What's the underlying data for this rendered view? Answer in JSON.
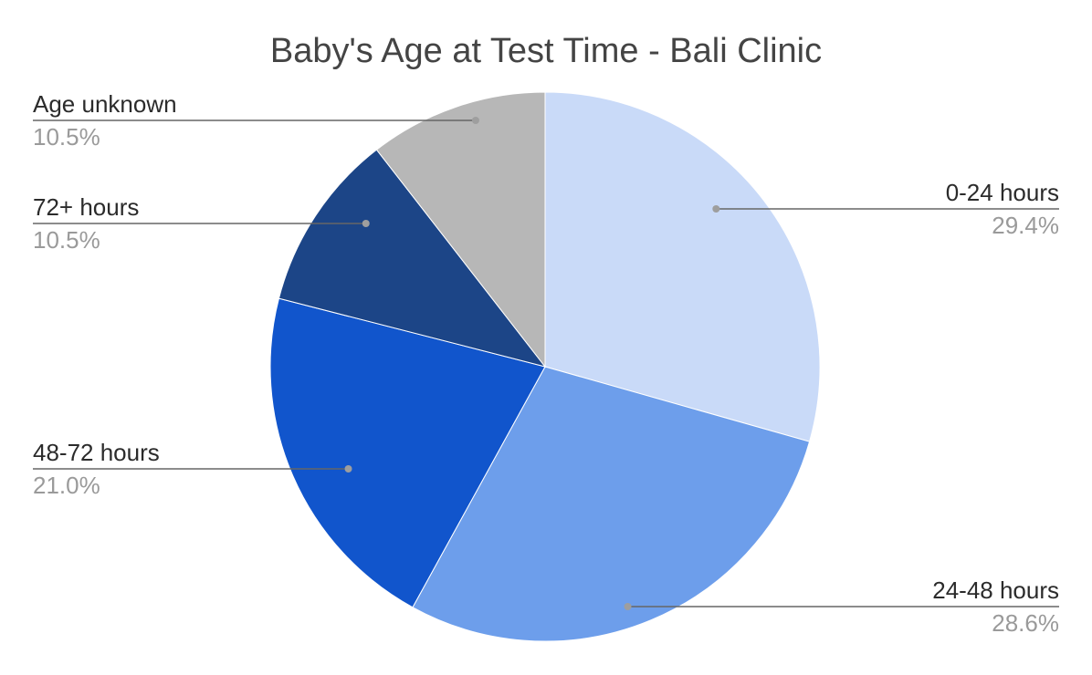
{
  "chart_data": {
    "type": "pie",
    "title": "Baby's Age at Test Time - Bali Clinic",
    "start_angle_deg": 0,
    "direction": "clockwise",
    "slices": [
      {
        "label": "0-24 hours",
        "value": 29.4,
        "value_label": "29.4%",
        "color": "#c9daf8"
      },
      {
        "label": "24-48 hours",
        "value": 28.6,
        "value_label": "28.6%",
        "color": "#6d9eeb"
      },
      {
        "label": "48-72 hours",
        "value": 21.0,
        "value_label": "21.0%",
        "color": "#1155cc"
      },
      {
        "label": "72+ hours",
        "value": 10.5,
        "value_label": "10.5%",
        "color": "#1c4587"
      },
      {
        "label": "Age unknown",
        "value": 10.5,
        "value_label": "10.5%",
        "color": "#b7b7b7"
      }
    ],
    "legend": "callout-labels",
    "leader_line_color": "#666666",
    "leader_dot_color": "#9e9e9e"
  }
}
